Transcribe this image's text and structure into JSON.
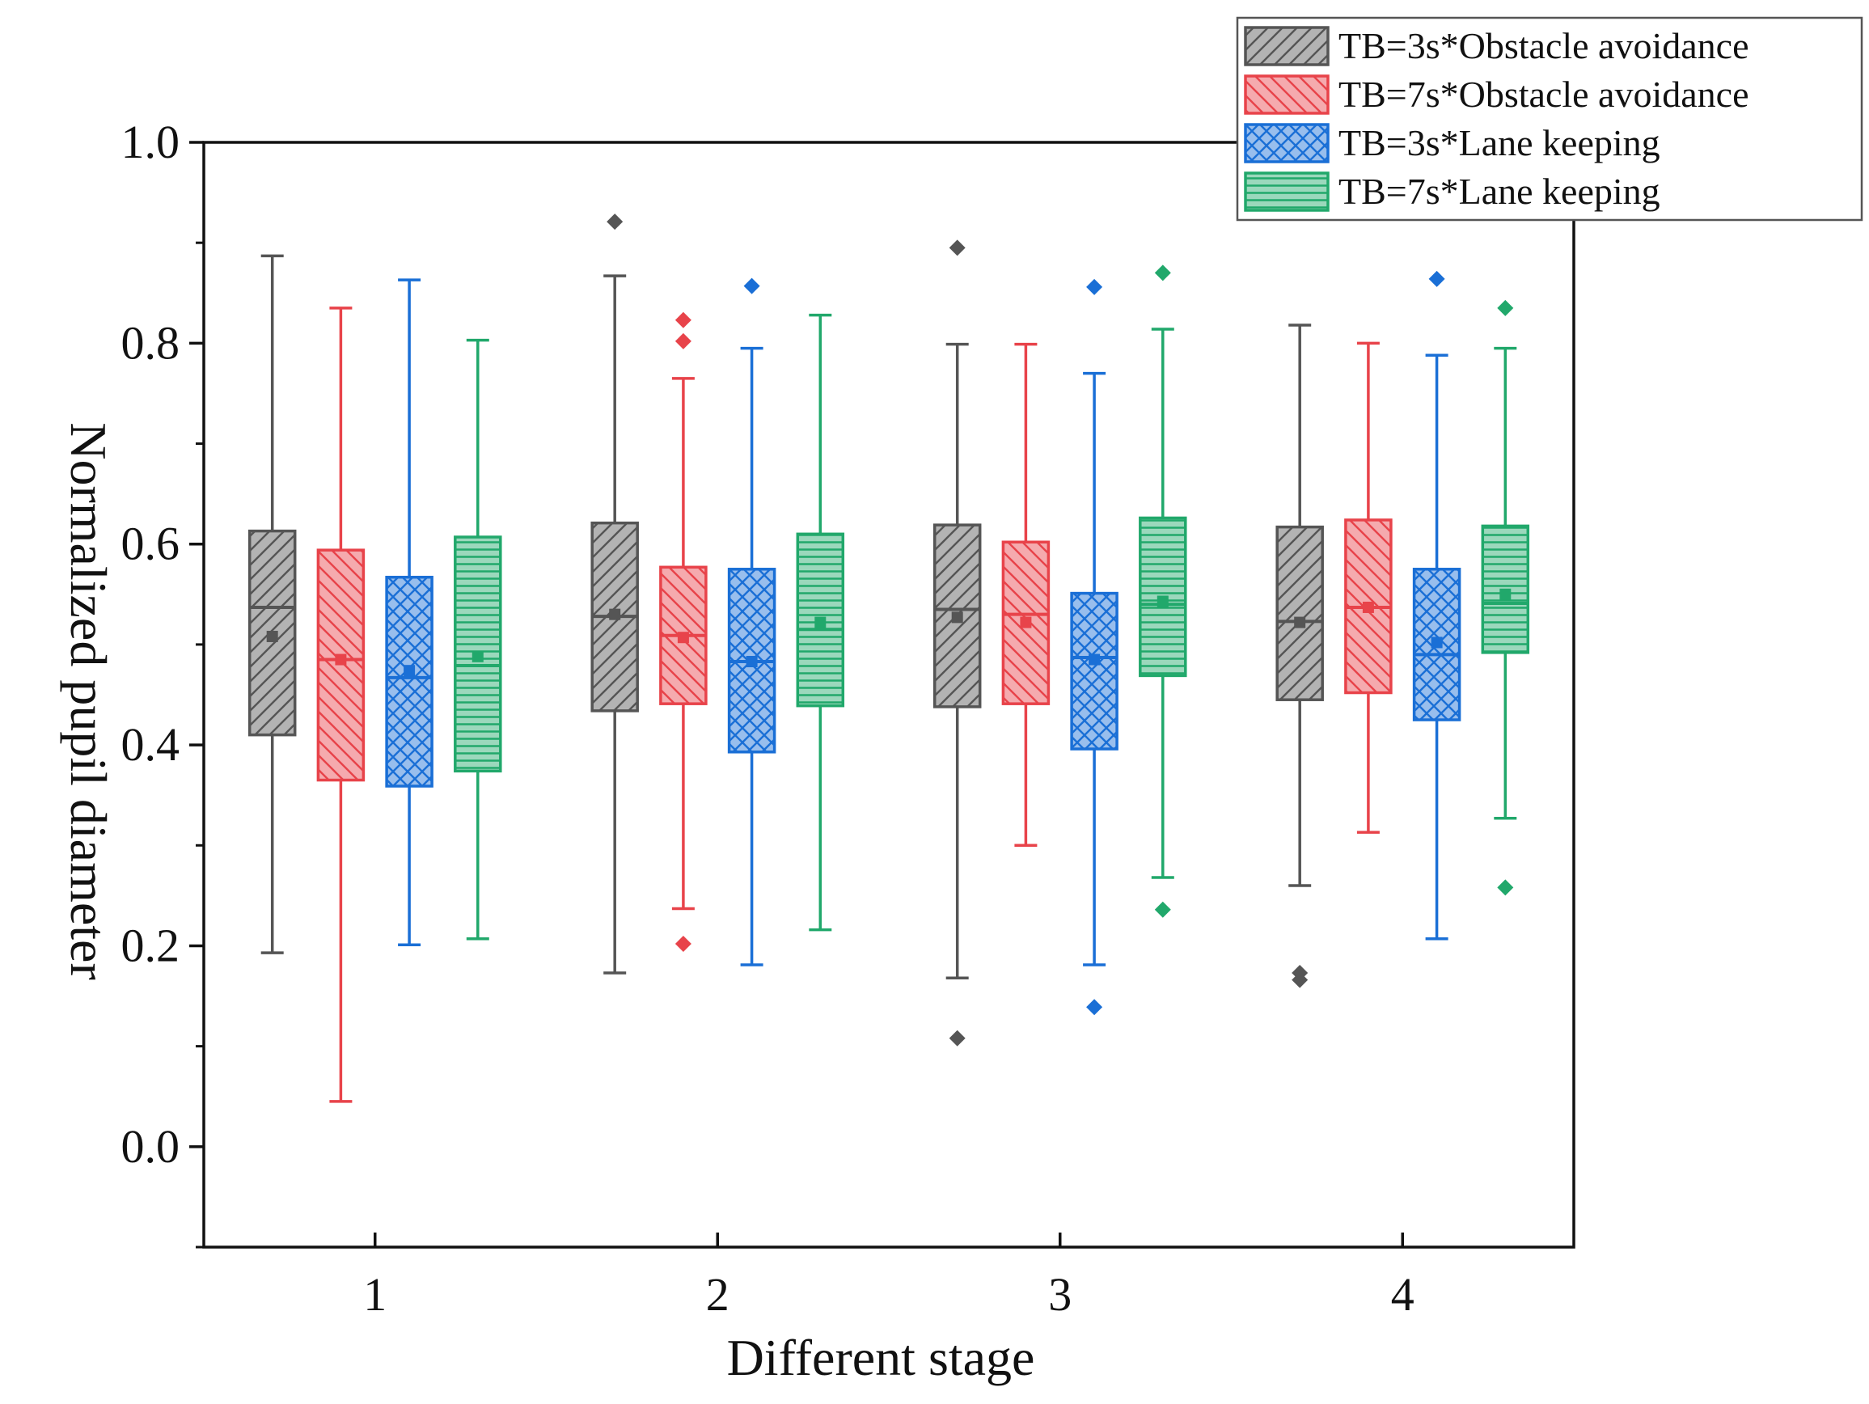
{
  "chart_data": {
    "type": "box",
    "title": "",
    "xlabel": "Different stage",
    "ylabel": "Normalized pupil diameter",
    "ylim": [
      -0.1,
      1.0
    ],
    "xlim": [
      0.5,
      4.5
    ],
    "x_ticks": [
      "1",
      "2",
      "3",
      "4"
    ],
    "y_ticks": [
      "0.0",
      "0.2",
      "0.4",
      "0.6",
      "0.8",
      "1.0"
    ],
    "grid": false,
    "legend_position": "top-right",
    "series": [
      {
        "name": "TB=3s*Obstacle avoidance",
        "color": "#555555",
        "pattern": "diagonal-up",
        "boxes": [
          {
            "stage": "1",
            "whisker_low": 0.193,
            "q1": 0.41,
            "median": 0.537,
            "q3": 0.613,
            "whisker_high": 0.887,
            "mean": 0.508,
            "outliers": []
          },
          {
            "stage": "2",
            "whisker_low": 0.173,
            "q1": 0.434,
            "median": 0.528,
            "q3": 0.621,
            "whisker_high": 0.867,
            "mean": 0.53,
            "outliers": [
              0.921
            ]
          },
          {
            "stage": "3",
            "whisker_low": 0.168,
            "q1": 0.438,
            "median": 0.535,
            "q3": 0.619,
            "whisker_high": 0.799,
            "mean": 0.527,
            "outliers": [
              0.895,
              0.108
            ]
          },
          {
            "stage": "4",
            "whisker_low": 0.26,
            "q1": 0.445,
            "median": 0.523,
            "q3": 0.617,
            "whisker_high": 0.818,
            "mean": 0.522,
            "outliers": [
              0.173,
              0.166
            ]
          }
        ]
      },
      {
        "name": "TB=7s*Obstacle avoidance",
        "color": "#e8434a",
        "pattern": "diagonal-down",
        "boxes": [
          {
            "stage": "1",
            "whisker_low": 0.045,
            "q1": 0.365,
            "median": 0.485,
            "q3": 0.594,
            "whisker_high": 0.835,
            "mean": 0.485,
            "outliers": []
          },
          {
            "stage": "2",
            "whisker_low": 0.237,
            "q1": 0.441,
            "median": 0.509,
            "q3": 0.577,
            "whisker_high": 0.765,
            "mean": 0.507,
            "outliers": [
              0.823,
              0.802,
              0.202
            ]
          },
          {
            "stage": "3",
            "whisker_low": 0.3,
            "q1": 0.441,
            "median": 0.53,
            "q3": 0.602,
            "whisker_high": 0.799,
            "mean": 0.522,
            "outliers": []
          },
          {
            "stage": "4",
            "whisker_low": 0.313,
            "q1": 0.452,
            "median": 0.537,
            "q3": 0.624,
            "whisker_high": 0.8,
            "mean": 0.537,
            "outliers": []
          }
        ]
      },
      {
        "name": "TB=3s*Lane keeping",
        "color": "#1a6fd6",
        "pattern": "crosshatch",
        "boxes": [
          {
            "stage": "1",
            "whisker_low": 0.201,
            "q1": 0.359,
            "median": 0.467,
            "q3": 0.567,
            "whisker_high": 0.863,
            "mean": 0.474,
            "outliers": []
          },
          {
            "stage": "2",
            "whisker_low": 0.181,
            "q1": 0.393,
            "median": 0.483,
            "q3": 0.575,
            "whisker_high": 0.795,
            "mean": 0.483,
            "outliers": [
              0.857
            ]
          },
          {
            "stage": "3",
            "whisker_low": 0.181,
            "q1": 0.396,
            "median": 0.487,
            "q3": 0.551,
            "whisker_high": 0.77,
            "mean": 0.485,
            "outliers": [
              0.856,
              0.139
            ]
          },
          {
            "stage": "4",
            "whisker_low": 0.207,
            "q1": 0.425,
            "median": 0.49,
            "q3": 0.575,
            "whisker_high": 0.788,
            "mean": 0.502,
            "outliers": [
              0.864
            ]
          }
        ]
      },
      {
        "name": "TB=7s*Lane keeping",
        "color": "#21a86b",
        "pattern": "horizontal",
        "boxes": [
          {
            "stage": "1",
            "whisker_low": 0.207,
            "q1": 0.374,
            "median": 0.479,
            "q3": 0.607,
            "whisker_high": 0.803,
            "mean": 0.488,
            "outliers": []
          },
          {
            "stage": "2",
            "whisker_low": 0.216,
            "q1": 0.439,
            "median": 0.515,
            "q3": 0.61,
            "whisker_high": 0.828,
            "mean": 0.522,
            "outliers": []
          },
          {
            "stage": "3",
            "whisker_low": 0.268,
            "q1": 0.469,
            "median": 0.54,
            "q3": 0.626,
            "whisker_high": 0.814,
            "mean": 0.543,
            "outliers": [
              0.87,
              0.236
            ]
          },
          {
            "stage": "4",
            "whisker_low": 0.327,
            "q1": 0.492,
            "median": 0.541,
            "q3": 0.618,
            "whisker_high": 0.795,
            "mean": 0.55,
            "outliers": [
              0.835,
              0.258
            ]
          }
        ]
      }
    ]
  }
}
